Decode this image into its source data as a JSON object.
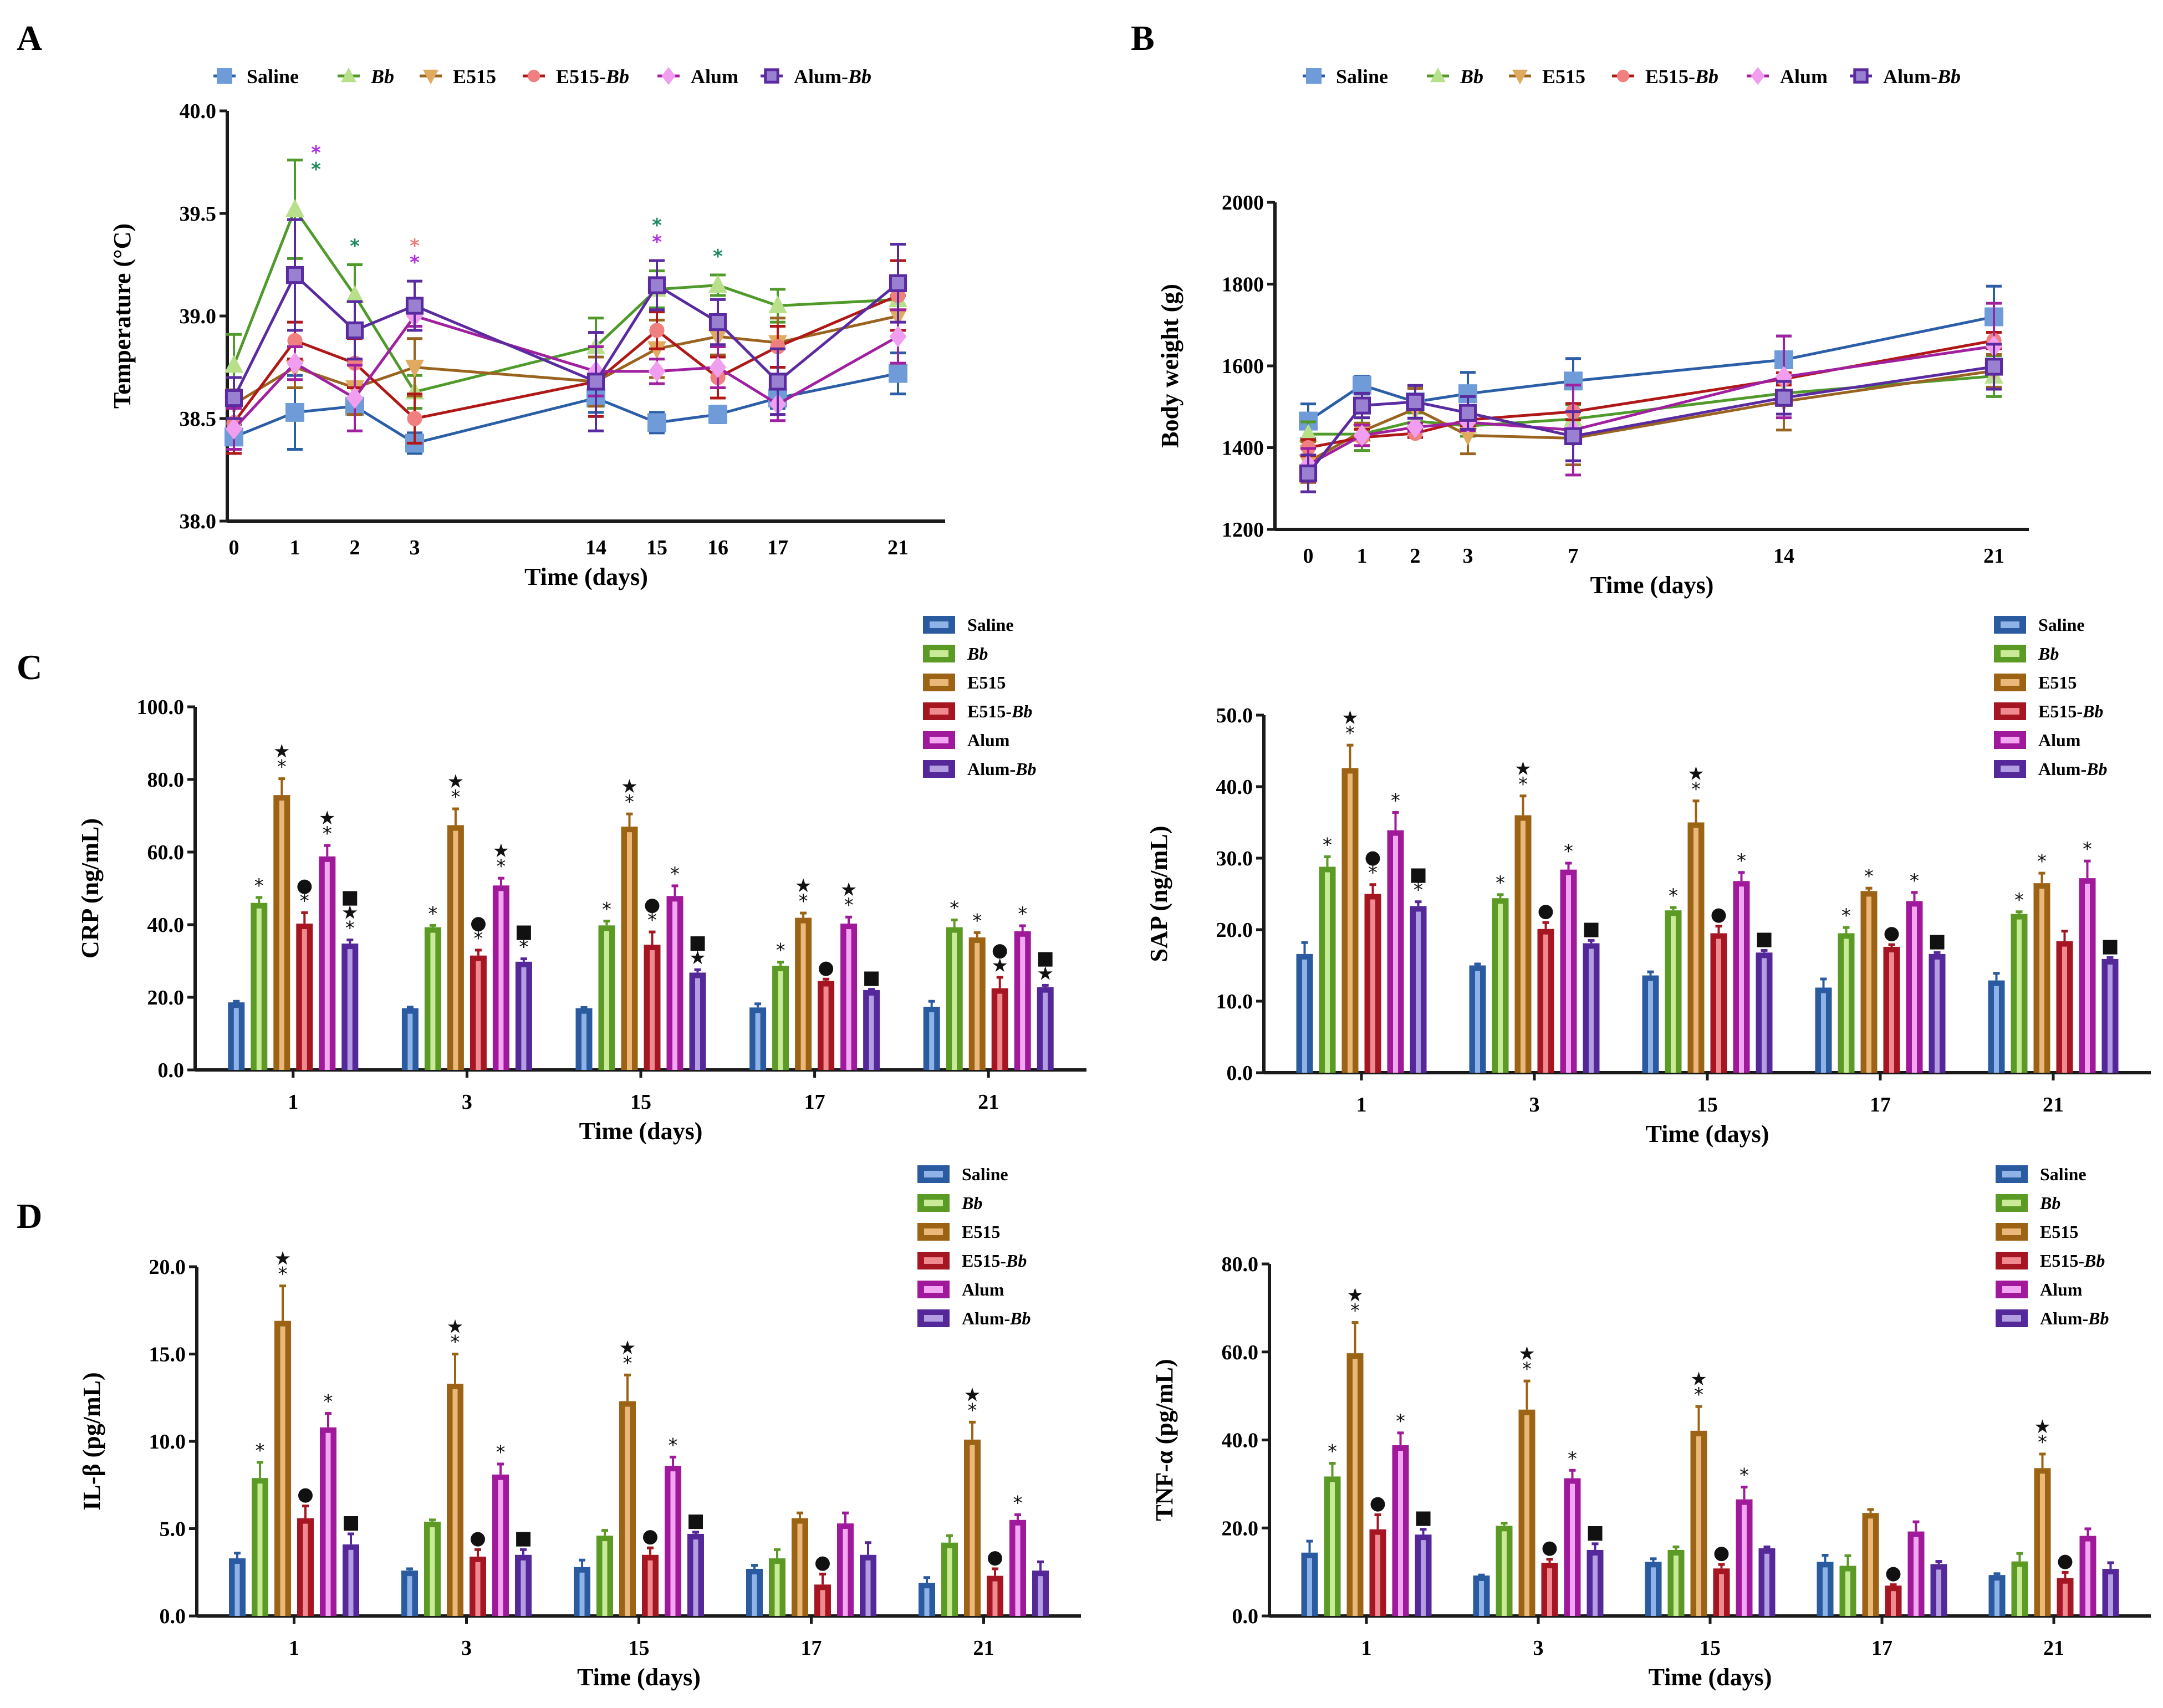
{
  "groups": [
    {
      "name": "Saline",
      "italic_part": "",
      "line_color": "#2b5ea7",
      "marker_color": "#6f9bd8",
      "marker": "square",
      "bar_dark": "#2a5aa0",
      "bar_light": "#8fb3e6"
    },
    {
      "name": "",
      "italic_part": "Bb",
      "line_color": "#4f9a2a",
      "marker_color": "#b8e08a",
      "marker": "triangle-up",
      "bar_dark": "#5a9a25",
      "bar_light": "#c9ea97"
    },
    {
      "name": "E515",
      "italic_part": "",
      "line_color": "#9a6420",
      "marker_color": "#e0aa60",
      "marker": "triangle-down",
      "bar_dark": "#9c6315",
      "bar_light": "#eab87a"
    },
    {
      "name": "E515-",
      "italic_part": "Bb",
      "line_color": "#b01818",
      "marker_color": "#f08080",
      "marker": "circle",
      "bar_dark": "#a51622",
      "bar_light": "#ee8a90"
    },
    {
      "name": "Alum",
      "italic_part": "",
      "line_color": "#a020a0",
      "marker_color": "#f29ef0",
      "marker": "diamond",
      "bar_dark": "#a0199a",
      "bar_light": "#f3a6f2"
    },
    {
      "name": "Alum-",
      "italic_part": "Bb",
      "line_color": "#5a2aa0",
      "marker_color": "#9a80d0",
      "marker": "open-square",
      "bar_dark": "#55289a",
      "bar_light": "#b29ee0"
    }
  ],
  "sig_legend_note": "asterisk, star, circle and square marks indicate significance",
  "chart_data": [
    {
      "panel": "A",
      "type": "line",
      "title": "",
      "xlabel": "Time (days)",
      "ylabel": "Temperature (°C)",
      "x": [
        0,
        1,
        2,
        3,
        14,
        15,
        16,
        17,
        21
      ],
      "x_tick_labels": [
        "0",
        "1",
        "2",
        "3",
        "14",
        "15",
        "16",
        "17",
        "21"
      ],
      "ylim": [
        38.0,
        40.0
      ],
      "y_ticks": [
        "38.0",
        "38.5",
        "39.0",
        "39.5",
        "40.0"
      ],
      "legend_position": "top",
      "series": [
        {
          "name": "Saline",
          "values": [
            38.41,
            38.53,
            38.56,
            38.38,
            38.6,
            38.48,
            38.52,
            38.6,
            38.72
          ],
          "err": [
            0.06,
            0.18,
            0.04,
            0.05,
            0.07,
            0.05,
            0.04,
            0.05,
            0.1
          ]
        },
        {
          "name": "Bb",
          "values": [
            38.76,
            39.52,
            39.1,
            38.63,
            38.85,
            39.13,
            39.15,
            39.05,
            39.08
          ],
          "err": [
            0.15,
            0.24,
            0.15,
            0.08,
            0.14,
            0.09,
            0.05,
            0.08,
            0.05
          ]
        },
        {
          "name": "E515",
          "values": [
            38.57,
            38.75,
            38.65,
            38.75,
            38.68,
            38.84,
            38.9,
            38.87,
            39.0
          ],
          "err": [
            0.07,
            0.1,
            0.13,
            0.14,
            0.12,
            0.14,
            0.09,
            0.12,
            0.1
          ]
        },
        {
          "name": "E515-Bb",
          "values": [
            38.48,
            38.88,
            38.77,
            38.5,
            38.68,
            38.93,
            38.7,
            38.85,
            39.1
          ],
          "err": [
            0.15,
            0.09,
            0.12,
            0.12,
            0.17,
            0.09,
            0.1,
            0.1,
            0.17
          ]
        },
        {
          "name": "Alum",
          "values": [
            38.45,
            38.77,
            38.6,
            39.0,
            38.73,
            38.73,
            38.75,
            38.57,
            38.9
          ],
          "err": [
            0.1,
            0.08,
            0.16,
            0.05,
            0.12,
            0.06,
            0.1,
            0.08,
            0.13
          ]
        },
        {
          "name": "Alum-Bb",
          "values": [
            38.6,
            39.2,
            38.93,
            39.05,
            38.68,
            39.15,
            38.97,
            38.68,
            39.16
          ],
          "err": [
            0.1,
            0.27,
            0.14,
            0.12,
            0.24,
            0.12,
            0.11,
            0.16,
            0.19
          ]
        }
      ],
      "annotations": [
        {
          "x": 1,
          "text": "*",
          "color": "#1a8a5a",
          "level": 0
        },
        {
          "x": 1,
          "text": "*",
          "color": "#b030e0",
          "level": 1
        },
        {
          "x": 2,
          "text": "*",
          "color": "#1a8a5a",
          "level": 0
        },
        {
          "x": 3,
          "text": "*",
          "color": "#b030e0",
          "level": 0
        },
        {
          "x": 3,
          "text": "*",
          "color": "#f08080",
          "level": 1
        },
        {
          "x": 15,
          "text": "*",
          "color": "#b030e0",
          "level": 0
        },
        {
          "x": 15,
          "text": "*",
          "color": "#1a8a5a",
          "level": 1
        },
        {
          "x": 16,
          "text": "*",
          "color": "#1a8a5a",
          "level": 0
        }
      ]
    },
    {
      "panel": "B",
      "type": "line",
      "title": "",
      "xlabel": "Time (days)",
      "ylabel": "Body weight (g)",
      "x": [
        0,
        1,
        2,
        3,
        7,
        14,
        21
      ],
      "x_tick_labels": [
        "0",
        "1",
        "2",
        "3",
        "7",
        "14",
        "21"
      ],
      "ylim": [
        1200,
        2000
      ],
      "y_ticks": [
        "1200",
        "1400",
        "1600",
        "1800",
        "2000"
      ],
      "legend_position": "top",
      "series": [
        {
          "name": "Saline",
          "values": [
            1465,
            1553,
            1512,
            1532,
            1563,
            1615,
            1720
          ],
          "err": [
            42,
            22,
            40,
            52,
            55,
            58,
            75
          ]
        },
        {
          "name": "Bb",
          "values": [
            1433,
            1433,
            1465,
            1453,
            1470,
            1533,
            1575
          ],
          "err": [
            30,
            40,
            20,
            25,
            35,
            30,
            50
          ]
        },
        {
          "name": "E515",
          "values": [
            1365,
            1440,
            1495,
            1430,
            1423,
            1513,
            1588
          ],
          "err": [
            50,
            20,
            50,
            45,
            65,
            70,
            40
          ]
        },
        {
          "name": "E515-Bb",
          "values": [
            1400,
            1425,
            1435,
            1468,
            1488,
            1568,
            1662
          ],
          "err": [
            20,
            20,
            10,
            15,
            20,
            15,
            20
          ]
        },
        {
          "name": "Alum",
          "values": [
            1358,
            1430,
            1450,
            1462,
            1443,
            1573,
            1648
          ],
          "err": [
            40,
            25,
            10,
            20,
            110,
            100,
            105
          ]
        },
        {
          "name": "Alum-Bb",
          "values": [
            1337,
            1503,
            1512,
            1485,
            1428,
            1522,
            1598
          ],
          "err": [
            45,
            30,
            40,
            40,
            60,
            40,
            55
          ]
        }
      ]
    },
    {
      "panel": "C-left",
      "type": "bar",
      "title": "",
      "xlabel": "Time (days)",
      "ylabel": "CRP (ng/mL)",
      "categories": [
        "1",
        "3",
        "15",
        "17",
        "21"
      ],
      "ylim": [
        0,
        100
      ],
      "y_ticks": [
        "0.0",
        "20.0",
        "40.0",
        "60.0",
        "80.0",
        "100.0"
      ],
      "legend_position": "top-right",
      "series": [
        {
          "name": "Saline",
          "values": [
            18.6,
            17.0,
            17.0,
            17.2,
            17.4
          ],
          "err": [
            0.3,
            0.3,
            0.2,
            1.0,
            1.5
          ]
        },
        {
          "name": "Bb",
          "values": [
            46.0,
            39.3,
            39.8,
            28.7,
            39.3
          ],
          "err": [
            1.5,
            0.5,
            1.2,
            1.0,
            2.0
          ]
        },
        {
          "name": "E515",
          "values": [
            75.7,
            67.4,
            67.0,
            41.9,
            36.5
          ],
          "err": [
            4.5,
            4.5,
            3.5,
            1.3,
            1.3
          ]
        },
        {
          "name": "E515-Bb",
          "values": [
            40.3,
            31.5,
            34.5,
            24.5,
            22.5
          ],
          "err": [
            3.0,
            1.5,
            3.5,
            0.5,
            3.0
          ]
        },
        {
          "name": "Alum",
          "values": [
            58.8,
            50.8,
            47.9,
            40.3,
            38.2
          ],
          "err": [
            3.0,
            2.0,
            2.8,
            1.8,
            1.5
          ]
        },
        {
          "name": "Alum-Bb",
          "values": [
            34.8,
            29.8,
            26.8,
            22.0,
            22.8
          ],
          "err": [
            1.0,
            0.8,
            0.8,
            0.2,
            0.5
          ]
        }
      ],
      "significance": [
        [
          "",
          "*",
          "*★",
          "*●",
          "*★",
          "*★■"
        ],
        [
          "",
          "*",
          "*★",
          "*●",
          "*★",
          "*■"
        ],
        [
          "",
          "*",
          "*★",
          "*●",
          "*",
          "★■"
        ],
        [
          "",
          "*",
          "*★",
          "●",
          "*★",
          "■"
        ],
        [
          "",
          "*",
          "*",
          "★●",
          "*",
          "★■"
        ]
      ]
    },
    {
      "panel": "C-right",
      "type": "bar",
      "title": "",
      "xlabel": "Time (days)",
      "ylabel": "SAP (ng/mL)",
      "categories": [
        "1",
        "3",
        "15",
        "17",
        "21"
      ],
      "ylim": [
        0,
        50
      ],
      "y_ticks": [
        "0.0",
        "10.0",
        "20.0",
        "30.0",
        "40.0",
        "50.0"
      ],
      "legend_position": "top-right",
      "series": [
        {
          "name": "Saline",
          "values": [
            16.6,
            15.0,
            13.6,
            11.9,
            12.9
          ],
          "err": [
            1.6,
            0.2,
            0.5,
            1.2,
            1.0
          ]
        },
        {
          "name": "Bb",
          "values": [
            28.8,
            24.4,
            22.7,
            19.5,
            22.2
          ],
          "err": [
            1.4,
            0.5,
            0.4,
            0.8,
            0.3
          ]
        },
        {
          "name": "E515",
          "values": [
            42.6,
            36.0,
            35.0,
            25.4,
            26.5
          ],
          "err": [
            3.2,
            2.7,
            3.0,
            0.4,
            1.4
          ]
        },
        {
          "name": "E515-Bb",
          "values": [
            25.0,
            20.1,
            19.5,
            17.6,
            18.4
          ],
          "err": [
            1.3,
            0.9,
            1.0,
            0.3,
            1.4
          ]
        },
        {
          "name": "Alum",
          "values": [
            33.9,
            28.4,
            26.8,
            24.0,
            27.2
          ],
          "err": [
            2.5,
            0.9,
            1.2,
            1.2,
            2.4
          ]
        },
        {
          "name": "Alum-Bb",
          "values": [
            23.3,
            18.1,
            16.8,
            16.6,
            15.9
          ],
          "err": [
            0.6,
            0.4,
            0.3,
            0.2,
            0.2
          ]
        }
      ],
      "significance": [
        [
          "",
          "*",
          "*★",
          "*●",
          "*",
          "*■"
        ],
        [
          "",
          "*",
          "*★",
          "●",
          "*",
          "■"
        ],
        [
          "",
          "*",
          "*★",
          "●",
          "*",
          "■"
        ],
        [
          "",
          "*",
          "*",
          "●",
          "*",
          "■"
        ],
        [
          "",
          "*",
          "*",
          "",
          "*",
          "■"
        ]
      ]
    },
    {
      "panel": "D-left",
      "type": "bar",
      "title": "",
      "xlabel": "Time (days)",
      "ylabel": "IL-β (pg/mL)",
      "categories": [
        "1",
        "3",
        "15",
        "17",
        "21"
      ],
      "ylim": [
        0,
        20
      ],
      "y_ticks": [
        "0.0",
        "5.0",
        "10.0",
        "15.0",
        "20.0"
      ],
      "legend_position": "top-right",
      "series": [
        {
          "name": "Saline",
          "values": [
            3.3,
            2.6,
            2.8,
            2.7,
            1.9
          ],
          "err": [
            0.3,
            0.1,
            0.4,
            0.2,
            0.3
          ]
        },
        {
          "name": "Bb",
          "values": [
            7.9,
            5.4,
            4.6,
            3.3,
            4.2
          ],
          "err": [
            0.9,
            0.1,
            0.3,
            0.5,
            0.4
          ]
        },
        {
          "name": "E515",
          "values": [
            16.9,
            13.3,
            12.3,
            5.6,
            10.1
          ],
          "err": [
            2.0,
            1.7,
            1.5,
            0.3,
            1.0
          ]
        },
        {
          "name": "E515-Bb",
          "values": [
            5.6,
            3.4,
            3.5,
            1.8,
            2.3
          ],
          "err": [
            0.7,
            0.4,
            0.4,
            0.6,
            0.4
          ]
        },
        {
          "name": "Alum",
          "values": [
            10.8,
            8.1,
            8.6,
            5.3,
            5.5
          ],
          "err": [
            0.8,
            0.6,
            0.5,
            0.6,
            0.3
          ]
        },
        {
          "name": "Alum-Bb",
          "values": [
            4.1,
            3.5,
            4.7,
            3.5,
            2.6
          ],
          "err": [
            0.6,
            0.3,
            0.1,
            0.7,
            0.5
          ]
        }
      ],
      "significance": [
        [
          "",
          "*",
          "*★",
          "●",
          "*",
          "■"
        ],
        [
          "",
          "",
          "*★",
          "●",
          "*",
          "■"
        ],
        [
          "",
          "",
          "*★",
          "●",
          "*",
          "■"
        ],
        [
          "",
          "",
          "",
          "●",
          "",
          ""
        ],
        [
          "",
          "",
          "*★",
          "●",
          "*",
          ""
        ]
      ]
    },
    {
      "panel": "D-right",
      "type": "bar",
      "title": "",
      "xlabel": "Time (days)",
      "ylabel": "TNF-α (pg/mL)",
      "categories": [
        "1",
        "3",
        "15",
        "17",
        "21"
      ],
      "ylim": [
        0,
        80
      ],
      "y_ticks": [
        "0.0",
        "20.0",
        "40.0",
        "60.0",
        "80.0"
      ],
      "legend_position": "top-right",
      "series": [
        {
          "name": "Saline",
          "values": [
            14.4,
            9.2,
            12.3,
            12.3,
            9.3
          ],
          "err": [
            2.6,
            0.1,
            0.7,
            1.5,
            0.3
          ]
        },
        {
          "name": "Bb",
          "values": [
            31.7,
            20.5,
            15.0,
            11.4,
            12.4
          ],
          "err": [
            3.0,
            0.6,
            0.7,
            2.3,
            1.8
          ]
        },
        {
          "name": "E515",
          "values": [
            59.7,
            46.9,
            42.1,
            23.4,
            33.6
          ],
          "err": [
            7.0,
            6.5,
            5.5,
            0.8,
            3.2
          ]
        },
        {
          "name": "E515-Bb",
          "values": [
            19.7,
            12.1,
            10.8,
            6.9,
            8.6
          ],
          "err": [
            3.3,
            0.8,
            0.9,
            0.2,
            1.3
          ]
        },
        {
          "name": "Alum",
          "values": [
            38.8,
            31.3,
            26.5,
            19.2,
            18.2
          ],
          "err": [
            2.8,
            1.8,
            2.8,
            2.2,
            1.6
          ]
        },
        {
          "name": "Alum-Bb",
          "values": [
            18.5,
            15.0,
            15.4,
            11.8,
            10.7
          ],
          "err": [
            1.2,
            1.4,
            0.3,
            0.6,
            1.4
          ]
        }
      ],
      "significance": [
        [
          "",
          "*",
          "*★",
          "●",
          "*",
          "■"
        ],
        [
          "",
          "",
          "*★",
          "●",
          "*",
          "■"
        ],
        [
          "",
          "",
          "*★",
          "●",
          "*",
          ""
        ],
        [
          "",
          "",
          "",
          "●",
          "",
          ""
        ],
        [
          "",
          "",
          "*★",
          "●",
          "",
          ""
        ]
      ]
    }
  ],
  "panel_letters": {
    "A": "A",
    "B": "B",
    "C": "C",
    "D": "D"
  }
}
